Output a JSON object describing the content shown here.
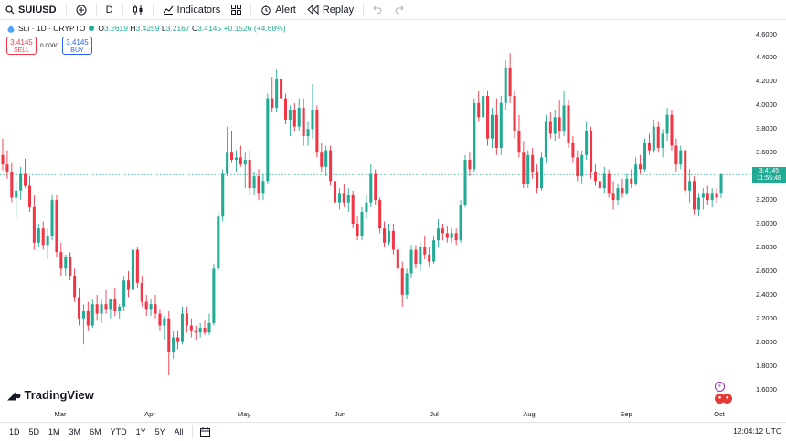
{
  "toolbar": {
    "symbol": "SUIUSD",
    "interval": "D",
    "indicators_label": "Indicators",
    "alert_label": "Alert",
    "replay_label": "Replay"
  },
  "legend": {
    "title": "Sui · 1D · CRYPTO",
    "open_label": "O",
    "open": "3.2619",
    "high_label": "H",
    "high": "3.4259",
    "low_label": "L",
    "low": "3.2167",
    "close_label": "C",
    "close": "3.4145",
    "change": "+0.1526 (+4.68%)"
  },
  "trade": {
    "sell_price": "3.4145",
    "sell_label": "SELL",
    "spread": "0.0000",
    "buy_price": "3.4145",
    "buy_label": "BUY"
  },
  "last_price": {
    "price": "3.4145",
    "countdown": "11:55:48"
  },
  "brand": "TradingView",
  "ranges": [
    "1D",
    "5D",
    "1M",
    "3M",
    "6M",
    "YTD",
    "1Y",
    "5Y",
    "All"
  ],
  "clock": "12:04:12 UTC",
  "colors": {
    "up": "#22ab94",
    "down": "#f23645",
    "accent": "#2962ff"
  },
  "chart_data": {
    "type": "candlestick",
    "title": "Sui · 1D · CRYPTO",
    "ylim": [
      1.45,
      4.72
    ],
    "yticks": [
      "1.6000",
      "1.8000",
      "2.0000",
      "2.2000",
      "2.4000",
      "2.6000",
      "2.8000",
      "3.0000",
      "3.2000",
      "3.4000",
      "3.6000",
      "3.8000",
      "4.0000",
      "4.2000",
      "4.4000",
      "4.6000"
    ],
    "x_labels": [
      "Mar",
      "Apr",
      "May",
      "Jun",
      "Jul",
      "Aug",
      "Sep",
      "Oct"
    ],
    "series": [
      {
        "name": "SUIUSD",
        "ohlc": [
          [
            3.58,
            3.72,
            3.45,
            3.5
          ],
          [
            3.5,
            3.62,
            3.38,
            3.44
          ],
          [
            3.44,
            3.52,
            3.18,
            3.22
          ],
          [
            3.22,
            3.36,
            3.05,
            3.28
          ],
          [
            3.28,
            3.48,
            3.2,
            3.42
          ],
          [
            3.42,
            3.55,
            3.3,
            3.32
          ],
          [
            3.32,
            3.4,
            3.1,
            3.14
          ],
          [
            3.14,
            3.24,
            2.78,
            2.84
          ],
          [
            2.84,
            3.0,
            2.8,
            2.96
          ],
          [
            2.96,
            3.02,
            2.78,
            2.82
          ],
          [
            2.82,
            2.96,
            2.7,
            2.9
          ],
          [
            2.9,
            3.24,
            2.86,
            3.2
          ],
          [
            3.2,
            3.24,
            2.72,
            2.76
          ],
          [
            2.76,
            2.84,
            2.56,
            2.62
          ],
          [
            2.62,
            2.74,
            2.56,
            2.72
          ],
          [
            2.72,
            2.76,
            2.52,
            2.56
          ],
          [
            2.56,
            2.62,
            2.34,
            2.38
          ],
          [
            2.38,
            2.46,
            2.14,
            2.2
          ],
          [
            2.2,
            2.32,
            1.98,
            2.26
          ],
          [
            2.26,
            2.34,
            2.1,
            2.14
          ],
          [
            2.14,
            2.36,
            2.12,
            2.32
          ],
          [
            2.32,
            2.4,
            2.18,
            2.24
          ],
          [
            2.24,
            2.36,
            2.16,
            2.32
          ],
          [
            2.32,
            2.44,
            2.24,
            2.28
          ],
          [
            2.28,
            2.36,
            2.2,
            2.36
          ],
          [
            2.36,
            2.46,
            2.22,
            2.26
          ],
          [
            2.26,
            2.32,
            2.2,
            2.3
          ],
          [
            2.3,
            2.56,
            2.26,
            2.52
          ],
          [
            2.52,
            2.6,
            2.38,
            2.44
          ],
          [
            2.44,
            2.84,
            2.42,
            2.78
          ],
          [
            2.78,
            2.8,
            2.46,
            2.5
          ],
          [
            2.5,
            2.56,
            2.3,
            2.34
          ],
          [
            2.34,
            2.4,
            2.22,
            2.28
          ],
          [
            2.28,
            2.36,
            2.22,
            2.32
          ],
          [
            2.32,
            2.4,
            2.2,
            2.24
          ],
          [
            2.24,
            2.28,
            2.1,
            2.14
          ],
          [
            2.14,
            2.22,
            2.02,
            2.2
          ],
          [
            2.2,
            2.26,
            1.72,
            1.92
          ],
          [
            1.92,
            2.1,
            1.86,
            2.04
          ],
          [
            2.04,
            2.1,
            1.94,
            2.0
          ],
          [
            2.0,
            2.3,
            1.98,
            2.24
          ],
          [
            2.24,
            2.3,
            2.08,
            2.14
          ],
          [
            2.14,
            2.2,
            2.04,
            2.1
          ],
          [
            2.1,
            2.14,
            2.02,
            2.08
          ],
          [
            2.08,
            2.16,
            2.04,
            2.12
          ],
          [
            2.12,
            2.18,
            2.06,
            2.08
          ],
          [
            2.08,
            2.24,
            2.06,
            2.16
          ],
          [
            2.16,
            2.66,
            2.14,
            2.62
          ],
          [
            2.62,
            3.1,
            2.6,
            3.06
          ],
          [
            3.06,
            3.46,
            3.02,
            3.42
          ],
          [
            3.42,
            3.82,
            3.4,
            3.6
          ],
          [
            3.6,
            3.78,
            3.52,
            3.54
          ],
          [
            3.54,
            3.62,
            3.44,
            3.56
          ],
          [
            3.56,
            3.66,
            3.48,
            3.5
          ],
          [
            3.5,
            3.6,
            3.3,
            3.54
          ],
          [
            3.54,
            3.62,
            3.24,
            3.3
          ],
          [
            3.3,
            3.44,
            3.24,
            3.4
          ],
          [
            3.4,
            3.46,
            3.2,
            3.26
          ],
          [
            3.26,
            3.42,
            3.2,
            3.36
          ],
          [
            3.36,
            4.1,
            3.34,
            4.06
          ],
          [
            4.06,
            4.24,
            3.94,
            3.98
          ],
          [
            3.98,
            4.3,
            3.94,
            4.22
          ],
          [
            4.22,
            4.24,
            3.96,
            4.06
          ],
          [
            4.06,
            4.1,
            3.84,
            3.88
          ],
          [
            3.88,
            4.0,
            3.74,
            3.96
          ],
          [
            3.96,
            4.02,
            3.78,
            3.82
          ],
          [
            3.82,
            4.06,
            3.78,
            3.98
          ],
          [
            3.98,
            4.06,
            3.66,
            3.74
          ],
          [
            3.74,
            3.86,
            3.66,
            3.8
          ],
          [
            3.8,
            4.18,
            3.72,
            3.96
          ],
          [
            3.96,
            4.0,
            3.56,
            3.6
          ],
          [
            3.6,
            3.68,
            3.44,
            3.48
          ],
          [
            3.48,
            3.66,
            3.4,
            3.62
          ],
          [
            3.62,
            3.66,
            3.32,
            3.36
          ],
          [
            3.36,
            3.4,
            3.14,
            3.18
          ],
          [
            3.18,
            3.3,
            3.12,
            3.26
          ],
          [
            3.26,
            3.34,
            3.14,
            3.18
          ],
          [
            3.18,
            3.3,
            3.1,
            3.24
          ],
          [
            3.24,
            3.28,
            2.96,
            3.0
          ],
          [
            3.0,
            3.06,
            2.86,
            2.9
          ],
          [
            2.9,
            3.14,
            2.86,
            3.1
          ],
          [
            3.1,
            3.24,
            3.04,
            3.18
          ],
          [
            3.18,
            3.5,
            3.14,
            3.42
          ],
          [
            3.42,
            3.46,
            3.16,
            3.2
          ],
          [
            3.2,
            3.22,
            2.92,
            2.96
          ],
          [
            2.96,
            3.02,
            2.8,
            2.84
          ],
          [
            2.84,
            3.0,
            2.82,
            2.94
          ],
          [
            2.94,
            3.0,
            2.74,
            2.78
          ],
          [
            2.78,
            2.84,
            2.58,
            2.62
          ],
          [
            2.62,
            2.68,
            2.3,
            2.4
          ],
          [
            2.4,
            2.62,
            2.36,
            2.58
          ],
          [
            2.58,
            2.82,
            2.54,
            2.78
          ],
          [
            2.78,
            2.82,
            2.62,
            2.66
          ],
          [
            2.66,
            2.84,
            2.6,
            2.8
          ],
          [
            2.8,
            2.9,
            2.7,
            2.74
          ],
          [
            2.74,
            2.8,
            2.64,
            2.68
          ],
          [
            2.68,
            2.9,
            2.66,
            2.86
          ],
          [
            2.86,
            3.04,
            2.8,
            2.96
          ],
          [
            2.96,
            3.0,
            2.86,
            2.92
          ],
          [
            2.92,
            2.98,
            2.84,
            2.88
          ],
          [
            2.88,
            2.96,
            2.84,
            2.92
          ],
          [
            2.92,
            2.96,
            2.82,
            2.86
          ],
          [
            2.86,
            3.2,
            2.84,
            3.16
          ],
          [
            3.16,
            3.58,
            3.14,
            3.54
          ],
          [
            3.54,
            3.6,
            3.4,
            3.46
          ],
          [
            3.46,
            4.06,
            3.44,
            4.02
          ],
          [
            4.02,
            4.12,
            3.86,
            3.9
          ],
          [
            3.9,
            4.16,
            3.84,
            4.08
          ],
          [
            4.08,
            4.12,
            3.66,
            3.72
          ],
          [
            3.72,
            3.98,
            3.64,
            3.92
          ],
          [
            3.92,
            4.06,
            3.58,
            3.64
          ],
          [
            3.64,
            4.08,
            3.58,
            4.02
          ],
          [
            4.02,
            4.38,
            3.96,
            4.32
          ],
          [
            4.32,
            4.44,
            4.02,
            4.08
          ],
          [
            4.08,
            4.12,
            3.72,
            3.78
          ],
          [
            3.78,
            3.92,
            3.56,
            3.6
          ],
          [
            3.6,
            3.7,
            3.3,
            3.34
          ],
          [
            3.34,
            3.62,
            3.3,
            3.58
          ],
          [
            3.58,
            3.64,
            3.38,
            3.44
          ],
          [
            3.44,
            3.5,
            3.26,
            3.3
          ],
          [
            3.3,
            3.6,
            3.28,
            3.56
          ],
          [
            3.56,
            3.92,
            3.52,
            3.86
          ],
          [
            3.86,
            3.94,
            3.72,
            3.76
          ],
          [
            3.76,
            3.96,
            3.7,
            3.9
          ],
          [
            3.9,
            4.04,
            3.72,
            3.78
          ],
          [
            3.78,
            4.12,
            3.74,
            4.0
          ],
          [
            4.0,
            4.04,
            3.64,
            3.68
          ],
          [
            3.68,
            3.74,
            3.52,
            3.56
          ],
          [
            3.56,
            3.62,
            3.36,
            3.4
          ],
          [
            3.4,
            3.62,
            3.34,
            3.58
          ],
          [
            3.58,
            3.86,
            3.54,
            3.78
          ],
          [
            3.78,
            3.82,
            3.38,
            3.44
          ],
          [
            3.44,
            3.5,
            3.32,
            3.36
          ],
          [
            3.36,
            3.44,
            3.26,
            3.3
          ],
          [
            3.3,
            3.48,
            3.26,
            3.42
          ],
          [
            3.42,
            3.46,
            3.22,
            3.26
          ],
          [
            3.26,
            3.36,
            3.12,
            3.2
          ],
          [
            3.2,
            3.34,
            3.16,
            3.3
          ],
          [
            3.3,
            3.38,
            3.22,
            3.26
          ],
          [
            3.26,
            3.42,
            3.24,
            3.38
          ],
          [
            3.38,
            3.46,
            3.3,
            3.34
          ],
          [
            3.34,
            3.56,
            3.32,
            3.5
          ],
          [
            3.5,
            3.58,
            3.42,
            3.46
          ],
          [
            3.46,
            3.72,
            3.44,
            3.68
          ],
          [
            3.68,
            3.76,
            3.58,
            3.62
          ],
          [
            3.62,
            3.88,
            3.6,
            3.82
          ],
          [
            3.82,
            3.86,
            3.6,
            3.64
          ],
          [
            3.64,
            3.8,
            3.56,
            3.76
          ],
          [
            3.76,
            3.98,
            3.7,
            3.92
          ],
          [
            3.92,
            3.96,
            3.62,
            3.66
          ],
          [
            3.66,
            3.72,
            3.44,
            3.5
          ],
          [
            3.5,
            3.66,
            3.46,
            3.62
          ],
          [
            3.62,
            3.64,
            3.24,
            3.28
          ],
          [
            3.28,
            3.46,
            3.18,
            3.36
          ],
          [
            3.36,
            3.4,
            3.08,
            3.12
          ],
          [
            3.12,
            3.26,
            3.06,
            3.22
          ],
          [
            3.22,
            3.3,
            3.12,
            3.26
          ],
          [
            3.26,
            3.32,
            3.16,
            3.2
          ],
          [
            3.2,
            3.3,
            3.14,
            3.26
          ],
          [
            3.26,
            3.3,
            3.18,
            3.22
          ],
          [
            3.2619,
            3.4259,
            3.2167,
            3.4145
          ]
        ]
      }
    ]
  }
}
